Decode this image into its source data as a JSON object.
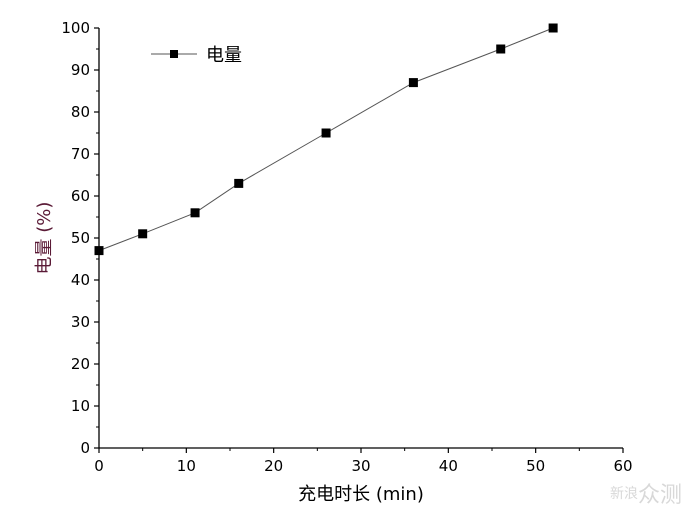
{
  "chart_data": {
    "type": "line",
    "x": [
      0,
      5,
      11,
      16,
      26,
      36,
      46,
      52
    ],
    "series": [
      {
        "name": "电量",
        "values": [
          47,
          51,
          56,
          63,
          75,
          87,
          95,
          100
        ],
        "marker": "square",
        "line_color": "#555555",
        "marker_color": "#000000"
      }
    ],
    "xlabel": "充电时长 (min)",
    "ylabel": "电量 (%)",
    "xlim": [
      0,
      60
    ],
    "ylim": [
      0,
      100
    ],
    "xticks": [
      "0",
      "10",
      "20",
      "30",
      "40",
      "50",
      "60"
    ],
    "yticks": [
      "0",
      "10",
      "20",
      "30",
      "40",
      "50",
      "60",
      "70",
      "80",
      "90",
      "100"
    ],
    "grid": false,
    "legend_position": "top-left",
    "colors": {
      "ylabel": "#5a1a36",
      "xlabel": "#000000"
    }
  },
  "watermark": {
    "brand": "新浪",
    "text": "众测"
  }
}
